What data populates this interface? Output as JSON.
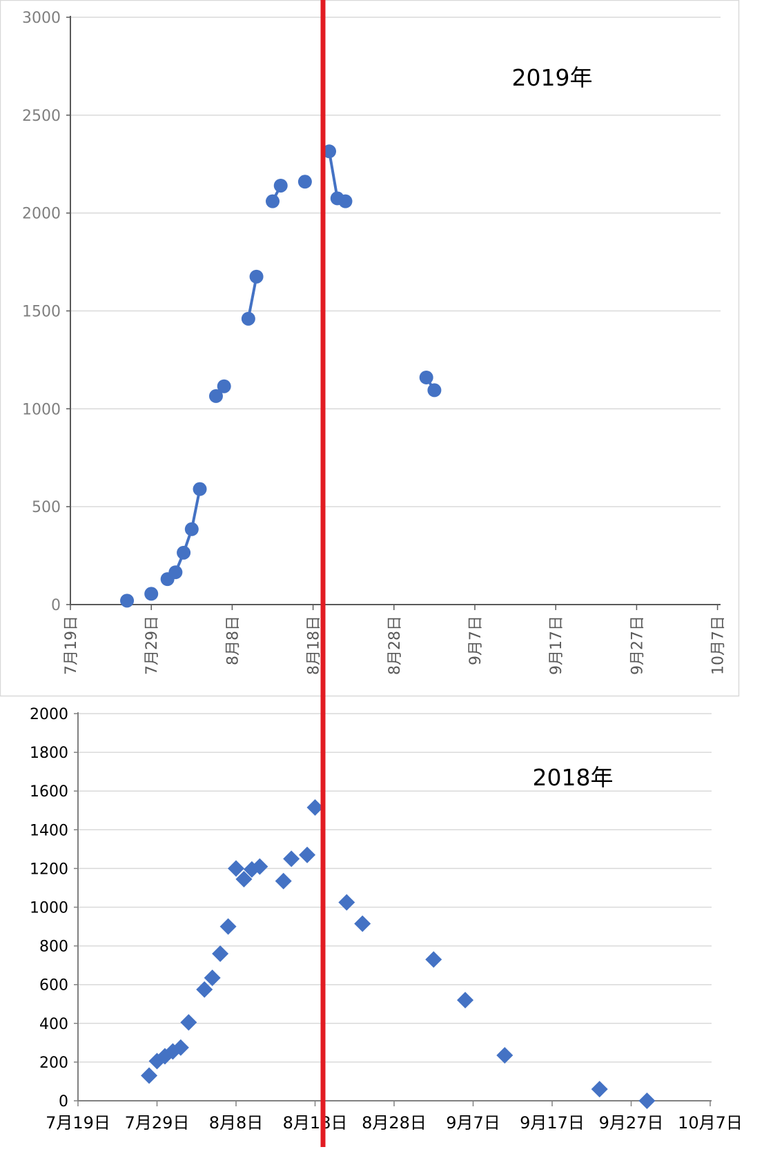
{
  "chart_data": [
    {
      "type": "scatter",
      "title": "2019年",
      "xlabel": "",
      "ylabel": "",
      "x_ticks": [
        "7月19日",
        "7月29日",
        "8月8日",
        "8月18日",
        "8月28日",
        "9月7日",
        "9月17日",
        "9月27日",
        "10月7日"
      ],
      "xlim": [
        "2019-07-19",
        "2019-10-10"
      ],
      "ylim": [
        0,
        3000
      ],
      "y_ticks": [
        "0",
        "500",
        "1000",
        "1500",
        "2000",
        "2500",
        "3000"
      ],
      "grid": true,
      "marker": "circle",
      "color": "#4472c4",
      "segments": [
        [
          {
            "x": "2019-07-26",
            "y": 20
          }
        ],
        [
          {
            "x": "2019-07-29",
            "y": 55
          }
        ],
        [
          {
            "x": "2019-07-31",
            "y": 130
          },
          {
            "x": "2019-08-01",
            "y": 165
          },
          {
            "x": "2019-08-02",
            "y": 265
          },
          {
            "x": "2019-08-03",
            "y": 385
          },
          {
            "x": "2019-08-04",
            "y": 590
          }
        ],
        [
          {
            "x": "2019-08-06",
            "y": 1065
          },
          {
            "x": "2019-08-07",
            "y": 1115
          }
        ],
        [
          {
            "x": "2019-08-10",
            "y": 1460
          },
          {
            "x": "2019-08-11",
            "y": 1675
          }
        ],
        [
          {
            "x": "2019-08-13",
            "y": 2060
          },
          {
            "x": "2019-08-14",
            "y": 2140
          }
        ],
        [
          {
            "x": "2019-08-17",
            "y": 2160
          }
        ],
        [
          {
            "x": "2019-08-20",
            "y": 2315
          },
          {
            "x": "2019-08-21",
            "y": 2075
          },
          {
            "x": "2019-08-22",
            "y": 2060
          }
        ],
        [
          {
            "x": "2019-09-01",
            "y": 1160
          },
          {
            "x": "2019-09-02",
            "y": 1095
          }
        ]
      ]
    },
    {
      "type": "scatter",
      "title": "2018年",
      "xlabel": "",
      "ylabel": "",
      "x_ticks": [
        "7月19日",
        "7月29日",
        "8月8日",
        "8月18日",
        "8月28日",
        "9月7日",
        "9月17日",
        "9月27日",
        "10月7日"
      ],
      "xlim": [
        "2018-07-19",
        "2018-10-07"
      ],
      "ylim": [
        0,
        2000
      ],
      "y_ticks": [
        "0",
        "200",
        "400",
        "600",
        "800",
        "1000",
        "1200",
        "1400",
        "1600",
        "1800",
        "2000"
      ],
      "grid": true,
      "marker": "diamond",
      "color": "#4472c4",
      "points": [
        {
          "x": "2018-07-28",
          "y": 130
        },
        {
          "x": "2018-07-29",
          "y": 205
        },
        {
          "x": "2018-07-30",
          "y": 230
        },
        {
          "x": "2018-07-31",
          "y": 255
        },
        {
          "x": "2018-08-01",
          "y": 275
        },
        {
          "x": "2018-08-02",
          "y": 405
        },
        {
          "x": "2018-08-04",
          "y": 575
        },
        {
          "x": "2018-08-05",
          "y": 635
        },
        {
          "x": "2018-08-06",
          "y": 760
        },
        {
          "x": "2018-08-07",
          "y": 900
        },
        {
          "x": "2018-08-08",
          "y": 1200
        },
        {
          "x": "2018-08-09",
          "y": 1145
        },
        {
          "x": "2018-08-10",
          "y": 1195
        },
        {
          "x": "2018-08-11",
          "y": 1210
        },
        {
          "x": "2018-08-14",
          "y": 1135
        },
        {
          "x": "2018-08-15",
          "y": 1250
        },
        {
          "x": "2018-08-17",
          "y": 1270
        },
        {
          "x": "2018-08-18",
          "y": 1515
        },
        {
          "x": "2018-08-22",
          "y": 1025
        },
        {
          "x": "2018-08-24",
          "y": 915
        },
        {
          "x": "2018-09-02",
          "y": 730
        },
        {
          "x": "2018-09-06",
          "y": 520
        },
        {
          "x": "2018-09-11",
          "y": 235
        },
        {
          "x": "2018-09-23",
          "y": 60
        },
        {
          "x": "2018-09-29",
          "y": 0
        }
      ]
    }
  ],
  "reference_line": {
    "color": "#e21c22"
  }
}
